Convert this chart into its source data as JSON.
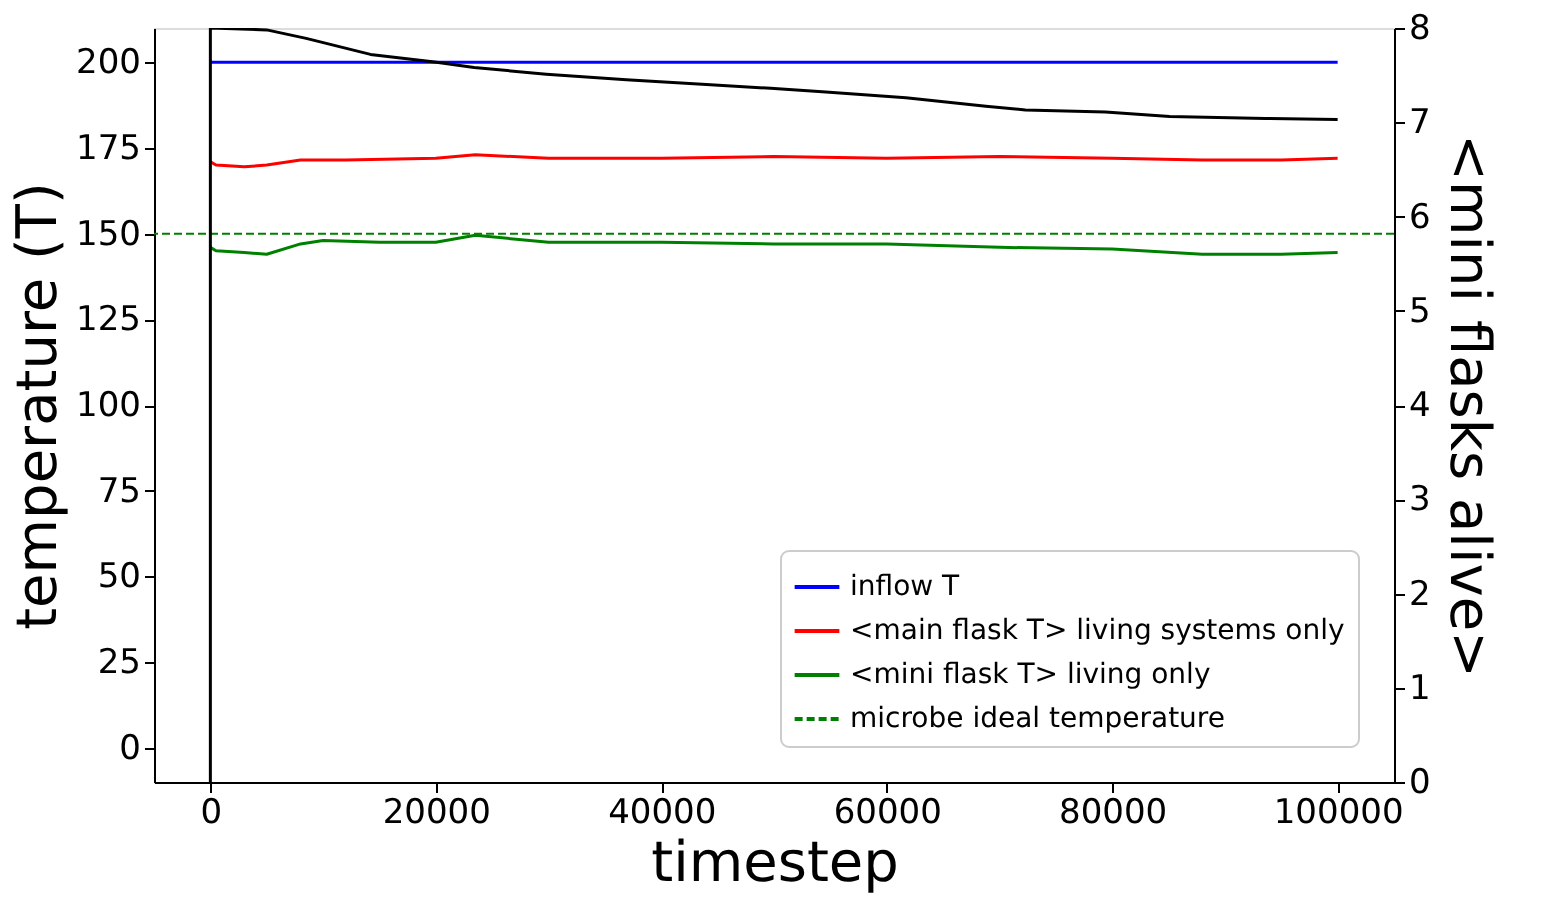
{
  "chart_data": {
    "type": "line",
    "xlabel": "timestep",
    "ylabel": "temperature (T)",
    "y2label": "<mini flasks alive>",
    "xlim": [
      -5000,
      105000
    ],
    "xticks": [
      0,
      20000,
      40000,
      60000,
      80000,
      100000
    ],
    "ylim": [
      -10,
      210
    ],
    "yticks": [
      0,
      25,
      50,
      75,
      100,
      125,
      150,
      175,
      200
    ],
    "y2lim": [
      0,
      8
    ],
    "y2ticks": [
      0,
      1,
      2,
      3,
      4,
      5,
      6,
      7,
      8
    ],
    "legend": "bottom right",
    "grid": false,
    "line_style": "solid",
    "series": [
      {
        "name": "inflow T",
        "color": "#0000ff",
        "x": [
          0,
          100000
        ],
        "values": [
          200,
          200
        ]
      },
      {
        "name": "<main flask T> living systems only",
        "color": "#ff0000",
        "x": [
          0,
          500,
          3000,
          5000,
          8000,
          12000,
          20000,
          23500,
          30000,
          40000,
          50000,
          60000,
          70000,
          80000,
          88000,
          95000,
          100000
        ],
        "values": [
          171,
          170,
          169.5,
          170,
          171.5,
          171.5,
          172,
          173,
          172,
          172,
          172.5,
          172,
          172.5,
          172,
          171.5,
          171.5,
          172
        ]
      },
      {
        "name": "<mini flask T> living only",
        "color": "#008000",
        "x": [
          0,
          500,
          3000,
          5000,
          8000,
          10000,
          15000,
          20000,
          23500,
          30000,
          40000,
          50000,
          60000,
          70000,
          80000,
          88000,
          95000,
          100000
        ],
        "values": [
          146,
          145,
          144.5,
          144,
          147,
          148,
          147.5,
          147.5,
          149.5,
          147.5,
          147.5,
          147,
          147,
          146,
          145.5,
          144,
          144,
          144.5
        ]
      },
      {
        "color": "#000000",
        "axis": "y2",
        "x": [
          0,
          0,
          5000,
          8500,
          14200,
          19900,
          23400,
          29800,
          36900,
          44000,
          49700,
          54600,
          61700,
          68800,
          72300,
          79400,
          85100,
          93600,
          100000
        ],
        "values": [
          0,
          8,
          7.98,
          7.89,
          7.72,
          7.64,
          7.58,
          7.51,
          7.45,
          7.4,
          7.36,
          7.32,
          7.26,
          7.17,
          7.13,
          7.11,
          7.06,
          7.04,
          7.03
        ]
      }
    ],
    "ref_lines": [
      {
        "axis": "y",
        "value": 150,
        "label": "microbe ideal temperature",
        "color": "#008000",
        "line_style": "dashed"
      }
    ]
  }
}
